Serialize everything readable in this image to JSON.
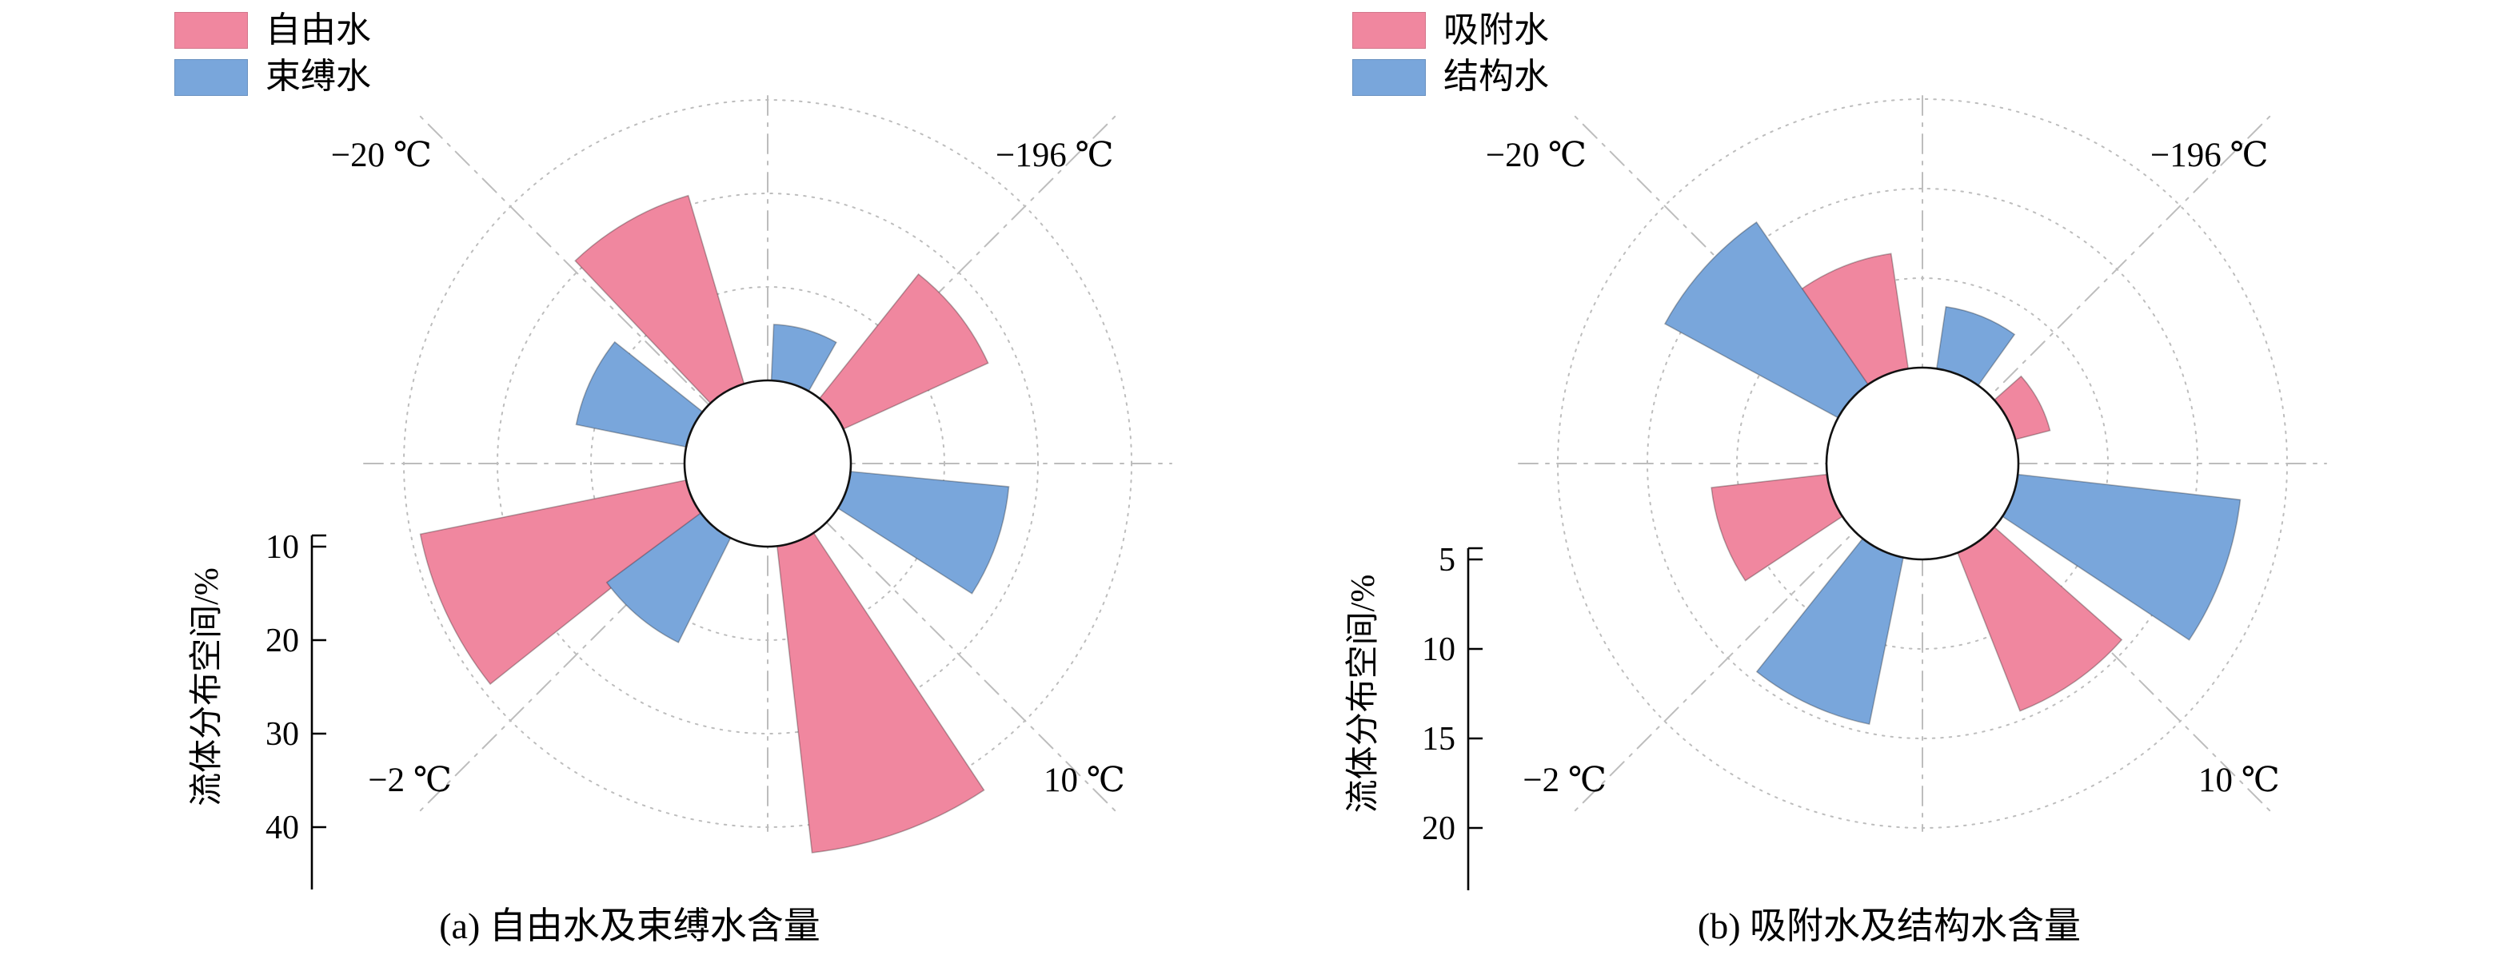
{
  "figure": {
    "charts": [
      {
        "id": "a",
        "caption": "(a) 自由水及束缚水含量",
        "chart_data": {
          "type": "polar-bar",
          "ylabel": "流体分布空间/%",
          "units": "%",
          "radial_ticks": [
            10,
            20,
            30,
            40
          ],
          "bar_width_deg": 27,
          "angle_convention": "degrees CCW from east",
          "grid": "dotted rings + dash-dot crosshair and diagonals",
          "sectors": [
            {
              "label": "−20 ℃",
              "position": "top-left",
              "axis_angle": 135
            },
            {
              "label": "−196 ℃",
              "position": "top-right",
              "axis_angle": 45
            },
            {
              "label": "−2 ℃",
              "position": "bottom-left",
              "axis_angle": 225
            },
            {
              "label": "10 ℃",
              "position": "bottom-right",
              "axis_angle": 315
            }
          ],
          "series": [
            {
              "name": "自由水",
              "color": "#F0879F",
              "points": [
                {
                  "sector": "−196 ℃",
                  "angle": 38,
                  "value": 27
                },
                {
                  "sector": "−20 ℃",
                  "angle": 120,
                  "value": 31
                },
                {
                  "sector": "−2 ℃",
                  "angle": 205,
                  "value": 39
                },
                {
                  "sector": "10 ℃",
                  "angle": 290,
                  "value": 43
                }
              ]
            },
            {
              "name": "束缚水",
              "color": "#79A6DB",
              "points": [
                {
                  "sector": "−196 ℃",
                  "angle": 74,
                  "value": 16
                },
                {
                  "sector": "−20 ℃",
                  "angle": 155,
                  "value": 22
                },
                {
                  "sector": "−2 ℃",
                  "angle": 230,
                  "value": 22.5
                },
                {
                  "sector": "10 ℃",
                  "angle": 341,
                  "value": 27
                }
              ]
            }
          ]
        }
      },
      {
        "id": "b",
        "caption": "(b) 吸附水及结构水含量",
        "chart_data": {
          "type": "polar-bar",
          "ylabel": "流体分布空间/%",
          "units": "%",
          "radial_ticks": [
            5,
            10,
            15,
            20
          ],
          "bar_width_deg": 27,
          "angle_convention": "degrees CCW from east",
          "grid": "dotted rings + dash-dot crosshair and diagonals",
          "sectors": [
            {
              "label": "−20 ℃",
              "position": "top-left",
              "axis_angle": 135
            },
            {
              "label": "−196 ℃",
              "position": "top-right",
              "axis_angle": 45
            },
            {
              "label": "−2 ℃",
              "position": "bottom-left",
              "axis_angle": 225
            },
            {
              "label": "10 ℃",
              "position": "bottom-right",
              "axis_angle": 315
            }
          ],
          "series": [
            {
              "name": "吸附水",
              "color": "#F0879F",
              "points": [
                {
                  "sector": "−196 ℃",
                  "angle": 28,
                  "value": 7
                },
                {
                  "sector": "−20 ℃",
                  "angle": 112,
                  "value": 11.5
                },
                {
                  "sector": "−2 ℃",
                  "angle": 200,
                  "value": 11.5
                },
                {
                  "sector": "10 ℃",
                  "angle": 305,
                  "value": 14.5
                }
              ]
            },
            {
              "name": "结构水",
              "color": "#79A6DB",
              "points": [
                {
                  "sector": "−196 ℃",
                  "angle": 68,
                  "value": 8.5
                },
                {
                  "sector": "−20 ℃",
                  "angle": 138,
                  "value": 16
                },
                {
                  "sector": "−2 ℃",
                  "angle": 245,
                  "value": 14.5
                },
                {
                  "sector": "10 ℃",
                  "angle": 340,
                  "value": 17.5
                }
              ]
            }
          ]
        }
      }
    ]
  }
}
